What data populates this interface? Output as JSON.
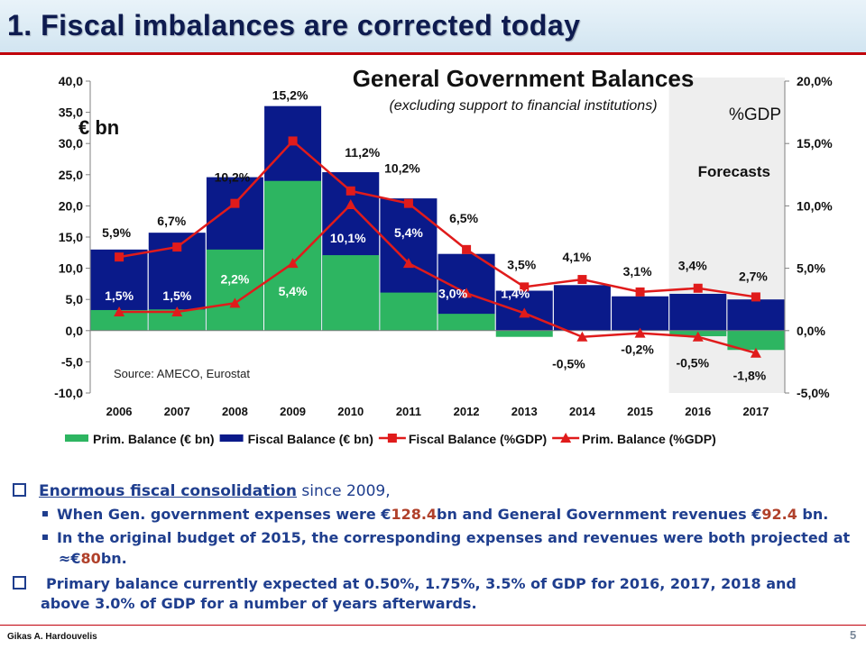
{
  "slide": {
    "title": "1.   Fiscal imbalances are corrected today",
    "author": "Gikas A. Hardouvelis",
    "page_number": "5"
  },
  "colors": {
    "prim_bar": "#2db561",
    "fiscal_bar": "#0a1a8a",
    "line": "#e01b1b",
    "title": "#0e1b4f",
    "bullet_text": "#1f3e8e",
    "highlight": "#b0402a"
  },
  "chart_data": {
    "type": "bar",
    "title": "General Government Balances",
    "subtitle": "(excluding support to financial institutions)",
    "left_unit_label": "€ bn",
    "right_unit_label": "%GDP",
    "forecast_label": "Forecasts",
    "forecast_categories": [
      "2016",
      "2017"
    ],
    "source": "Source: AMECO, Eurostat",
    "categories": [
      "2006",
      "2007",
      "2008",
      "2009",
      "2010",
      "2011",
      "2012",
      "2013",
      "2014",
      "2015",
      "2016",
      "2017"
    ],
    "ylim_left": [
      -10,
      40
    ],
    "yticks_left": [
      "40,0",
      "35,0",
      "30,0",
      "25,0",
      "20,0",
      "15,0",
      "10,0",
      "5,0",
      "0,0",
      "-5,0",
      "-10,0"
    ],
    "ylim_right": [
      -5,
      20
    ],
    "yticks_right": [
      "20,0%",
      "15,0%",
      "10,0%",
      "5,0%",
      "0,0%",
      "-5,0%"
    ],
    "series": [
      {
        "name": "Prim. Balance (€ bn)",
        "kind": "bar",
        "axis": "left",
        "values": [
          3.3,
          3.4,
          13.0,
          24.0,
          12.1,
          6.1,
          2.7,
          -1.0,
          0.0,
          0.0,
          -0.9,
          -3.1
        ]
      },
      {
        "name": "Fiscal Balance (€ bn)",
        "kind": "bar",
        "axis": "left",
        "values": [
          13.0,
          15.7,
          24.6,
          36.0,
          25.4,
          21.2,
          12.3,
          6.4,
          7.3,
          5.5,
          5.9,
          5.0
        ]
      },
      {
        "name": "Fiscal Balance (%GDP)",
        "kind": "line",
        "marker": "square",
        "axis": "right",
        "values": [
          5.9,
          6.7,
          10.2,
          15.2,
          11.2,
          10.2,
          6.5,
          3.5,
          4.1,
          3.1,
          3.4,
          2.7
        ],
        "labels": [
          "5,9%",
          "6,7%",
          "10,2%",
          "15,2%",
          "11,2%",
          "10,2%",
          "6,5%",
          "3,5%",
          "4,1%",
          "3,1%",
          "3,4%",
          "2,7%"
        ]
      },
      {
        "name": "Prim. Balance (%GDP)",
        "kind": "line",
        "marker": "triangle",
        "axis": "right",
        "values": [
          1.5,
          1.5,
          2.2,
          5.4,
          10.1,
          5.4,
          3.0,
          1.4,
          -0.5,
          -0.2,
          -0.5,
          -1.8
        ],
        "labels": [
          "1,5%",
          "1,5%",
          "2,2%",
          "5,4%",
          "10,1%",
          "5,4%",
          "3,0%",
          "1,4%",
          "-0,5%",
          "-0,2%",
          "-0,5%",
          "-1,8%"
        ]
      }
    ],
    "legend_placement": "bottom"
  },
  "bullets": {
    "b1_underlined": "Enormous fiscal consolidation",
    "b1_rest": " since 2009,",
    "b2_pre": "When  Gen. government expenses were €",
    "b2_val1": "128.4",
    "b2_mid": "bn and General Government revenues €",
    "b2_val2": "92.4",
    "b2_post": " bn.",
    "b3_line1": "In the original budget of 2015, the corresponding expenses and revenues were both projected at",
    "b3_pre": "≈€",
    "b3_val": "80",
    "b3_post": "bn.",
    "b4_line1": "Primary balance currently expected at 0.50%, 1.75%, 3.5% of GDP for 2016, 2017, 2018 and",
    "b4_line2": "above 3.0% of GDP for a number of years afterwards."
  }
}
